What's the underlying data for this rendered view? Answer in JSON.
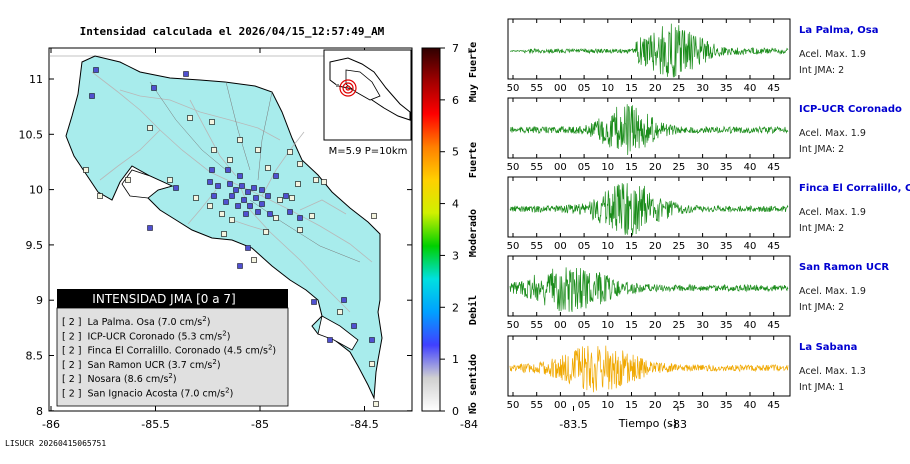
{
  "map": {
    "title": "Intensidad calculada el 2026/04/15_12:57:49_AM",
    "footer": "LISUCR 20260415065751",
    "x_ticks": [
      "-86",
      "-85.5",
      "-85",
      "-84.5",
      "-84",
      "-83.5",
      "-83"
    ],
    "y_ticks": [
      "11",
      "10.5",
      "10",
      "9.5",
      "9",
      "8.5",
      "8"
    ],
    "inset_label": "M=5.9 P=10km",
    "colors": {
      "land": "#a8ecec",
      "sea": "#ffffff",
      "roads": "#bdbdbd",
      "borders": "#000000"
    },
    "legend": {
      "header": "INTENSIDAD JMA [0 a 7]",
      "items": [
        {
          "level": "[ 2 ]",
          "name": "La Palma. Osa (7.0 cm/s",
          "unit_sup": "2",
          "close": ")"
        },
        {
          "level": "[ 2 ]",
          "name": "ICP-UCR Coronado (5.3 cm/s",
          "unit_sup": "2",
          "close": ")"
        },
        {
          "level": "[ 2 ]",
          "name": "Finca El Corralillo. Coronado (4.5 cm/s",
          "unit_sup": "2",
          "close": ")"
        },
        {
          "level": "[ 2 ]",
          "name": "San Ramon UCR (3.7 cm/s",
          "unit_sup": "2",
          "close": ")"
        },
        {
          "level": "[ 2 ]",
          "name": "Nosara (8.6 cm/s",
          "unit_sup": "2",
          "close": ")"
        },
        {
          "level": "[ 2 ]",
          "name": "San Ignacio Acosta (7.0 cm/s",
          "unit_sup": "2",
          "close": ")"
        }
      ]
    }
  },
  "colorbar": {
    "ticks": [
      "0",
      "1",
      "2",
      "3",
      "4",
      "5",
      "6",
      "7"
    ],
    "labels": [
      "No sentido",
      "Debil",
      "Moderado",
      "Fuerte",
      "Muy Fuerte"
    ],
    "stops": [
      "#ffffff",
      "#d0d0d0",
      "#4040ff",
      "#00a0ff",
      "#00e0e0",
      "#00d000",
      "#d0f000",
      "#ffd000",
      "#ff8000",
      "#ff0000",
      "#a00000",
      "#300000"
    ]
  },
  "chart_data": {
    "type": "line",
    "x_tick_labels": [
      "50",
      "55",
      "00",
      "05",
      "10",
      "15",
      "20",
      "25",
      "30",
      "35",
      "40",
      "45"
    ],
    "xlabel": "Tiempo (s)",
    "series": [
      {
        "name": "La Palma, Osa",
        "accel": "Acel. Max. 1.9",
        "jma": "Int JMA: 2",
        "color": "#1a8c1a",
        "onset": 0.05,
        "peak": 0.58,
        "amp": 0.9,
        "sigma": 0.12
      },
      {
        "name": "ICP-UCR Coronado",
        "accel": "Acel. Max. 1.9",
        "jma": "Int JMA: 2",
        "color": "#1a8c1a",
        "onset": 0.0,
        "peak": 0.42,
        "amp": 0.85,
        "sigma": 0.1
      },
      {
        "name": "Finca El Corralillo, Coronado",
        "accel": "Acel. Max. 1.9",
        "jma": "Int JMA: 2",
        "color": "#1a8c1a",
        "onset": 0.0,
        "peak": 0.43,
        "amp": 0.9,
        "sigma": 0.12
      },
      {
        "name": "San Ramon UCR",
        "accel": "Acel. Max. 1.9",
        "jma": "Int JMA: 2",
        "color": "#1a8c1a",
        "onset": 0.0,
        "peak": 0.22,
        "amp": 0.8,
        "sigma": 0.15
      },
      {
        "name": "La Sabana",
        "accel": "Acel. Max. 1.3",
        "jma": "Int JMA: 1",
        "color": "#f0a800",
        "onset": 0.0,
        "peak": 0.32,
        "amp": 0.8,
        "sigma": 0.15
      }
    ]
  }
}
